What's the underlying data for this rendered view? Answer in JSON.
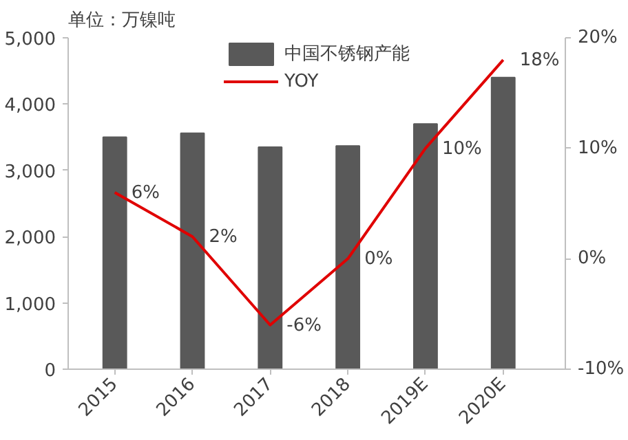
{
  "chart_data": {
    "type": "bar",
    "title": "单位：万镍吨",
    "categories": [
      "2015",
      "2016",
      "2017",
      "2018",
      "2019E",
      "2020E"
    ],
    "series": [
      {
        "name": "中国不锈钢产能",
        "color": "#595959",
        "values": [
          3500,
          3560,
          3350,
          3370,
          3700,
          4400
        ]
      },
      {
        "name": "YOY",
        "type": "line",
        "axis": "y2",
        "color": "#e00000",
        "values": [
          6,
          2,
          -6,
          0,
          10,
          18
        ],
        "value_labels": [
          "6%",
          "2%",
          "-6%",
          "0%",
          "10%",
          "18%"
        ]
      }
    ],
    "ylim": [
      0,
      5000
    ],
    "yticks": [
      0,
      {
        "value": 1000,
        "label": "1,000"
      },
      {
        "value": 2000,
        "label": "2,000"
      },
      {
        "value": 3000,
        "label": "3,000"
      },
      {
        "value": 4000,
        "label": "4,000"
      },
      {
        "value": 5000,
        "label": "5,000"
      }
    ],
    "y2lim": [
      -10,
      20
    ],
    "y2ticks": [
      {
        "value": -10,
        "label": "-10%"
      },
      {
        "value": 0,
        "label": "0%"
      },
      {
        "value": 10,
        "label": "10%"
      },
      {
        "value": 20,
        "label": "20%"
      }
    ],
    "grid": false,
    "legend": "top",
    "marker": "none",
    "line_style": "solid"
  }
}
